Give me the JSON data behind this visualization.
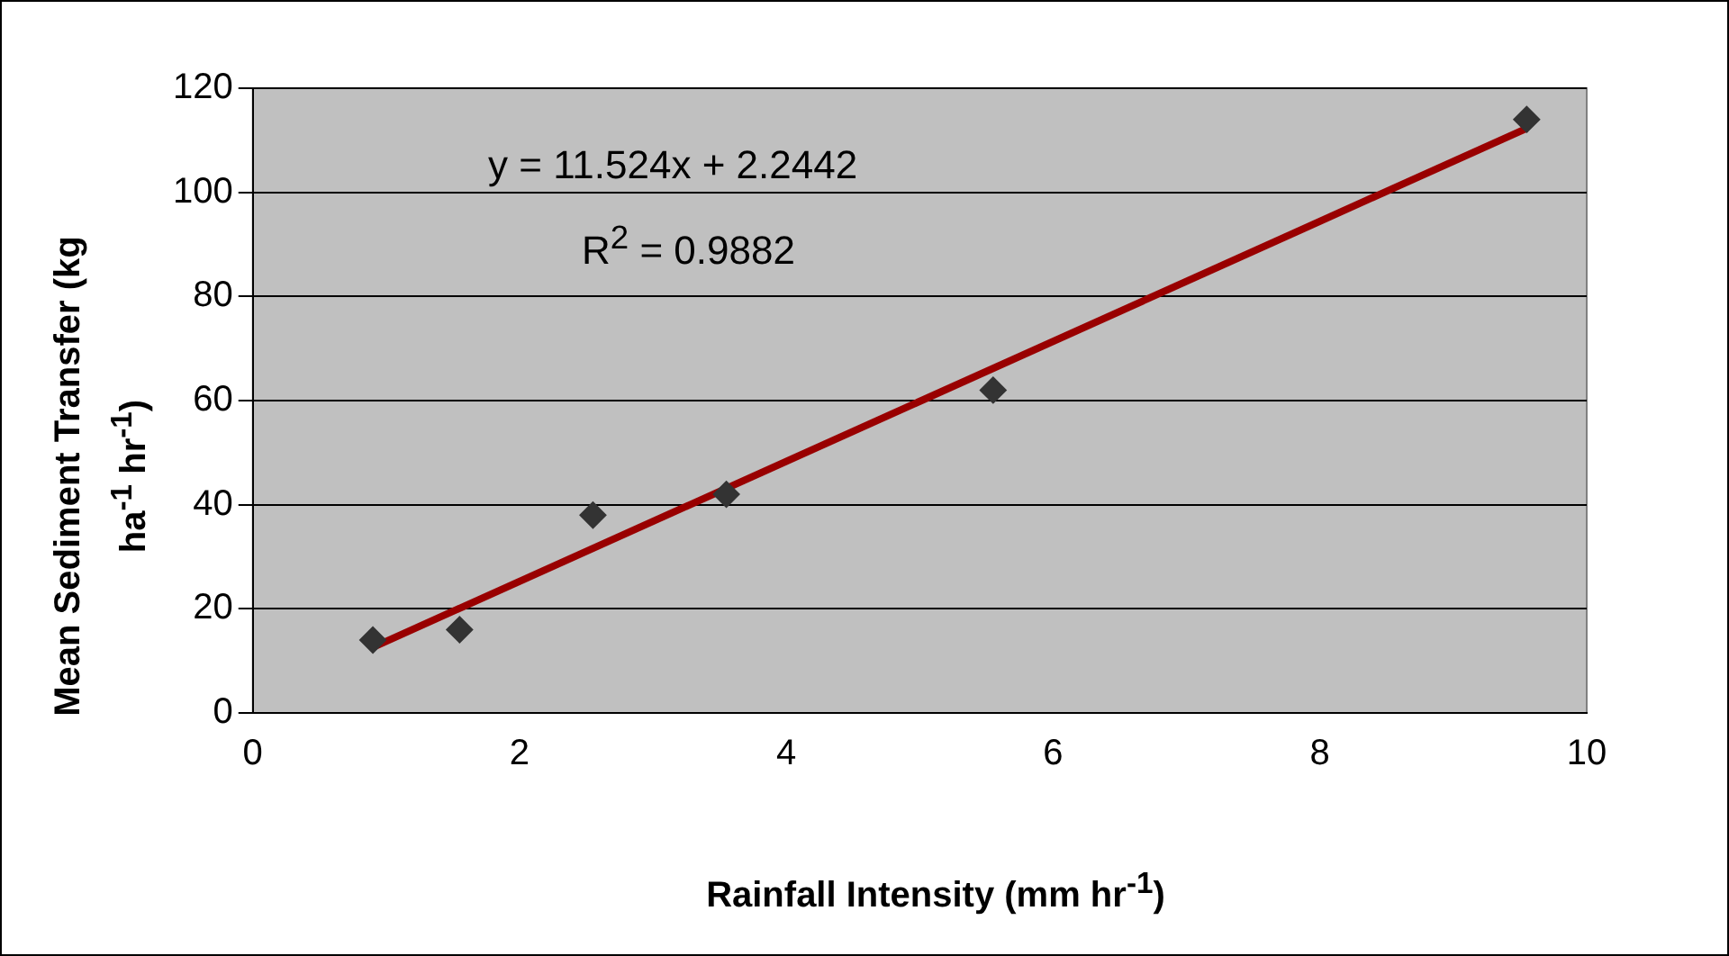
{
  "chart_data": {
    "type": "scatter",
    "xlabel": "Rainfall Intensity (mm hr$^{-1}$)",
    "ylabel": "Mean Sediment Transfer (kg ha$^{-1}$ hr$^{-1}$)",
    "annotations": [
      "y = 11.524x + 2.2442",
      "R$^{2}$ = 0.9882"
    ],
    "x": [
      0.9,
      1.55,
      2.55,
      3.55,
      5.55,
      9.55
    ],
    "series": [
      {
        "color": "#333333",
        "marker": "diamond",
        "values": [
          14,
          16,
          38,
          42,
          62,
          114
        ]
      },
      {
        "type": "line",
        "color": "#990000",
        "marker": "none",
        "x": [
          0.9,
          9.55
        ],
        "values": [
          12.6,
          112.3
        ]
      }
    ],
    "xlim": [
      0,
      10
    ],
    "xticks": [
      0,
      2,
      4,
      6,
      8,
      10
    ],
    "ylim": [
      0,
      120
    ],
    "yticks": [
      0,
      20,
      40,
      60,
      80,
      100,
      120
    ],
    "grid": "y",
    "legend": false
  }
}
